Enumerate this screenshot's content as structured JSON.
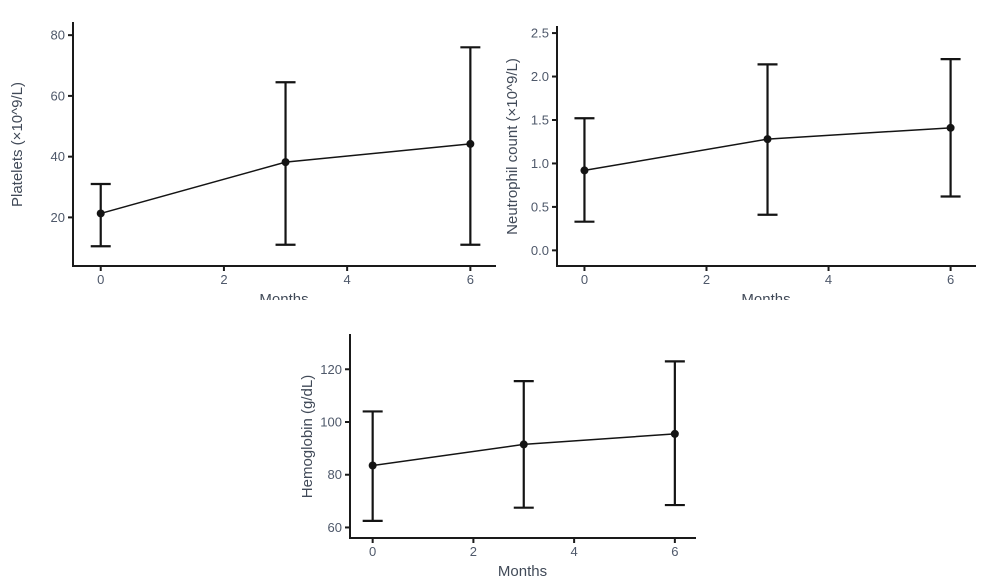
{
  "figure": {
    "description": "Three error-bar line charts of blood counts over months",
    "background": "#ffffff"
  },
  "colors": {
    "series": "#141414",
    "axis": "#1a1a1a",
    "tick_text": "#4e586a",
    "label_text": "#414a58",
    "background": "#ffffff"
  },
  "chart_data": [
    {
      "type": "line",
      "title": "",
      "xlabel": "Months",
      "ylabel": "Platelets (×10^9/L)",
      "x": [
        0,
        3,
        6
      ],
      "series": [
        {
          "name": "Platelets",
          "values": [
            21.3,
            38.2,
            44.2
          ],
          "error_low": [
            10.5,
            11.0,
            11.0
          ],
          "error_high": [
            31.0,
            64.5,
            76.0
          ]
        }
      ],
      "xticks": [
        0,
        2,
        4,
        6
      ],
      "xtick_labels": [
        "0",
        "2",
        "4",
        "6"
      ],
      "yticks": [
        20,
        40,
        60,
        80
      ],
      "ytick_labels": [
        "20",
        "40",
        "60",
        "80"
      ],
      "xlim": [
        -0.45,
        6.4
      ],
      "ylim": [
        4,
        84
      ],
      "grid": false,
      "legend": "none"
    },
    {
      "type": "line",
      "title": "",
      "xlabel": "Months",
      "ylabel": "Neutrophil count (×10^9/L)",
      "x": [
        0,
        3,
        6
      ],
      "series": [
        {
          "name": "Neutrophil count",
          "values": [
            0.92,
            1.28,
            1.41
          ],
          "error_low": [
            0.33,
            0.41,
            0.62
          ],
          "error_high": [
            1.52,
            2.14,
            2.2
          ]
        }
      ],
      "xticks": [
        0,
        2,
        4,
        6
      ],
      "xtick_labels": [
        "0",
        "2",
        "4",
        "6"
      ],
      "yticks": [
        0.0,
        0.5,
        1.0,
        1.5,
        2.0,
        2.5
      ],
      "ytick_labels": [
        "0.0",
        "0.5",
        "1.0",
        "1.5",
        "2.0",
        "2.5"
      ],
      "xlim": [
        -0.45,
        6.4
      ],
      "ylim": [
        -0.18,
        2.57
      ],
      "grid": false,
      "legend": "none"
    },
    {
      "type": "line",
      "title": "",
      "xlabel": "Months",
      "ylabel": "Hemoglobin (g/dL)",
      "x": [
        0,
        3,
        6
      ],
      "series": [
        {
          "name": "Hemoglobin",
          "values": [
            83.5,
            91.5,
            95.5
          ],
          "error_low": [
            62.5,
            67.5,
            68.5
          ],
          "error_high": [
            104.0,
            115.5,
            123.0
          ]
        }
      ],
      "xticks": [
        0,
        2,
        4,
        6
      ],
      "xtick_labels": [
        "0",
        "2",
        "4",
        "6"
      ],
      "yticks": [
        60,
        80,
        100,
        120
      ],
      "ytick_labels": [
        "60",
        "80",
        "100",
        "120"
      ],
      "xlim": [
        -0.45,
        6.4
      ],
      "ylim": [
        56,
        133
      ],
      "grid": false,
      "legend": "none"
    }
  ]
}
